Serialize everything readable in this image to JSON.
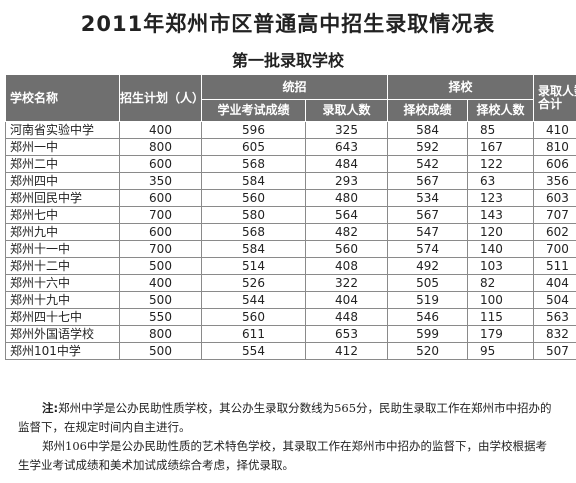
{
  "title": "2011年郑州市区普通高中招生录取情况表",
  "subtitle": "第一批录取学校",
  "headers": {
    "school_name": "学校名称",
    "plan": "招生计划（人）",
    "unified": "统招",
    "unified_score": "学业考试成绩",
    "unified_count": "录取人数",
    "select": "择校",
    "select_score": "择校成绩",
    "select_count": "择校人数",
    "total": "录取人数合计"
  },
  "rows": [
    {
      "name": "河南省实验中学",
      "plan": "400",
      "u_score": "596",
      "u_count": "325",
      "s_score": "584",
      "s_count": "85",
      "total": "410"
    },
    {
      "name": "郑州一中",
      "plan": "800",
      "u_score": "605",
      "u_count": "643",
      "s_score": "592",
      "s_count": "167",
      "total": "810"
    },
    {
      "name": "郑州二中",
      "plan": "600",
      "u_score": "568",
      "u_count": "484",
      "s_score": "542",
      "s_count": "122",
      "total": "606"
    },
    {
      "name": "郑州四中",
      "plan": "350",
      "u_score": "584",
      "u_count": "293",
      "s_score": "567",
      "s_count": "63",
      "total": "356"
    },
    {
      "name": "郑州回民中学",
      "plan": "600",
      "u_score": "560",
      "u_count": "480",
      "s_score": "534",
      "s_count": "123",
      "total": "603"
    },
    {
      "name": "郑州七中",
      "plan": "700",
      "u_score": "580",
      "u_count": "564",
      "s_score": "567",
      "s_count": "143",
      "total": "707"
    },
    {
      "name": "郑州九中",
      "plan": "600",
      "u_score": "568",
      "u_count": "482",
      "s_score": "547",
      "s_count": "120",
      "total": "602"
    },
    {
      "name": "郑州十一中",
      "plan": "700",
      "u_score": "584",
      "u_count": "560",
      "s_score": "574",
      "s_count": "140",
      "total": "700"
    },
    {
      "name": "郑州十二中",
      "plan": "500",
      "u_score": "514",
      "u_count": "408",
      "s_score": "492",
      "s_count": "103",
      "total": "511"
    },
    {
      "name": "郑州十六中",
      "plan": "400",
      "u_score": "526",
      "u_count": "322",
      "s_score": "505",
      "s_count": "82",
      "total": "404"
    },
    {
      "name": "郑州十九中",
      "plan": "500",
      "u_score": "544",
      "u_count": "404",
      "s_score": "519",
      "s_count": "100",
      "total": "504"
    },
    {
      "name": "郑州四十七中",
      "plan": "550",
      "u_score": "560",
      "u_count": "448",
      "s_score": "546",
      "s_count": "115",
      "total": "563"
    },
    {
      "name": "郑州外国语学校",
      "plan": "800",
      "u_score": "611",
      "u_count": "653",
      "s_score": "599",
      "s_count": "179",
      "total": "832"
    },
    {
      "name": "郑州101中学",
      "plan": "500",
      "u_score": "554",
      "u_count": "412",
      "s_score": "520",
      "s_count": "95",
      "total": "507"
    }
  ],
  "note": {
    "label": "注:",
    "para1": "郑州中学是公办民助性质学校，其公办生录取分数线为565分，民助生录取工作在郑州市中招办的监督下，在规定时间内自主进行。",
    "para2": "郑州106中学是公办民助性质的艺术特色学校，其录取工作在郑州市中招办的监督下，由学校根据考生学业考试成绩和美术加试成绩综合考虑，择优录取。"
  }
}
